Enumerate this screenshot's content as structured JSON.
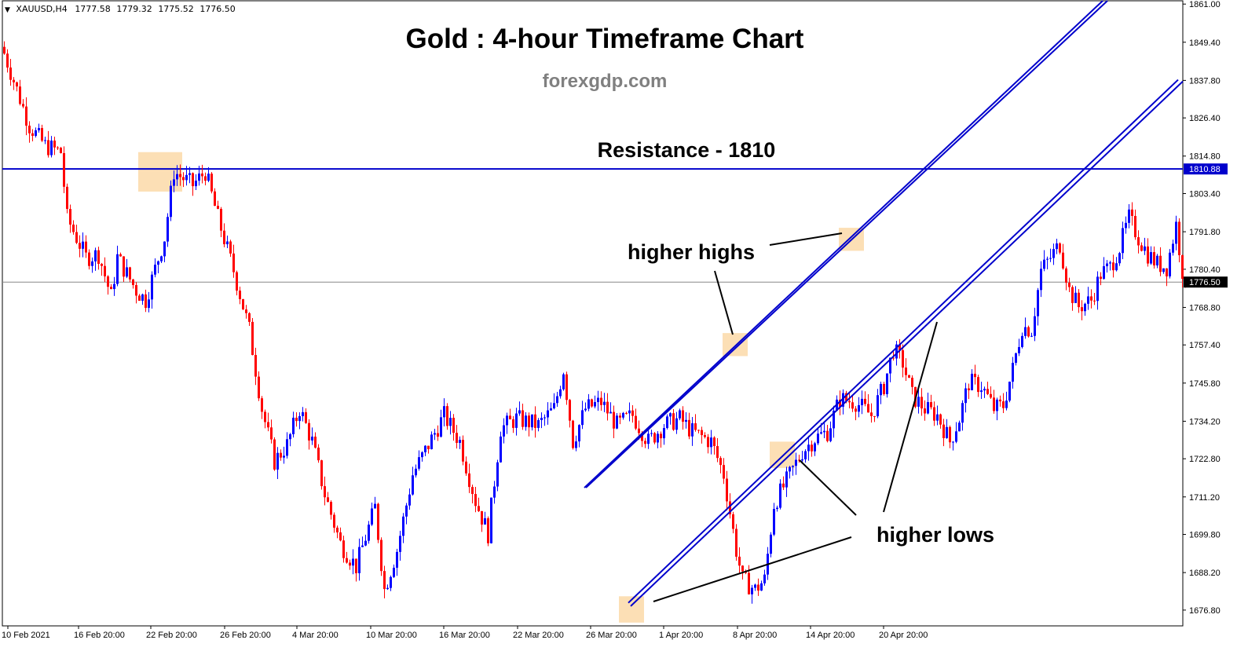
{
  "header": {
    "symbol": "XAUUSD,H4",
    "open": "1777.58",
    "high": "1779.32",
    "low": "1775.52",
    "close": "1776.50"
  },
  "chart_data": {
    "type": "candlestick",
    "title": "Gold : 4-hour Timeframe Chart",
    "subtitle": "forexgdp.com",
    "y_axis": {
      "range": [
        1672.0,
        1862.0
      ],
      "tick_labels": [
        "1861.00",
        "1849.40",
        "1837.80",
        "1826.40",
        "1814.80",
        "1803.40",
        "1791.80",
        "1780.40",
        "1768.80",
        "1757.40",
        "1745.80",
        "1734.20",
        "1722.80",
        "1711.20",
        "1699.80",
        "1688.20",
        "1676.80"
      ],
      "highlighted_labels": [
        {
          "label": "1810.88",
          "value": 1810.88,
          "color": "#0000cc"
        },
        {
          "label": "1776.50",
          "value": 1776.5,
          "color": "#ffffff"
        }
      ]
    },
    "x_axis": {
      "tick_labels": [
        "10 Feb 2021",
        "16 Feb 20:00",
        "22 Feb 20:00",
        "26 Feb 20:00",
        "4 Mar 20:00",
        "10 Mar 20:00",
        "16 Mar 20:00",
        "22 Mar 20:00",
        "26 Mar 20:00",
        "1 Apr 20:00",
        "8 Apr 20:00",
        "14 Apr 20:00",
        "20 Apr 20:00"
      ]
    },
    "candle_colors": {
      "up": "#0000ff",
      "down": "#ff0000"
    },
    "approximate_close_path": [
      {
        "bar": 0,
        "close": 1846
      },
      {
        "bar": 8,
        "close": 1824
      },
      {
        "bar": 13,
        "close": 1818
      },
      {
        "bar": 18,
        "close": 1816
      },
      {
        "bar": 20,
        "close": 1796
      },
      {
        "bar": 26,
        "close": 1784
      },
      {
        "bar": 30,
        "close": 1785
      },
      {
        "bar": 34,
        "close": 1772
      },
      {
        "bar": 36,
        "close": 1784
      },
      {
        "bar": 42,
        "close": 1774
      },
      {
        "bar": 45,
        "close": 1771
      },
      {
        "bar": 51,
        "close": 1790
      },
      {
        "bar": 54,
        "close": 1810
      },
      {
        "bar": 60,
        "close": 1806
      },
      {
        "bar": 64,
        "close": 1810
      },
      {
        "bar": 68,
        "close": 1796
      },
      {
        "bar": 73,
        "close": 1780
      },
      {
        "bar": 78,
        "close": 1762
      },
      {
        "bar": 82,
        "close": 1738
      },
      {
        "bar": 86,
        "close": 1722
      },
      {
        "bar": 90,
        "close": 1727
      },
      {
        "bar": 94,
        "close": 1738
      },
      {
        "bar": 98,
        "close": 1728
      },
      {
        "bar": 102,
        "close": 1712
      },
      {
        "bar": 107,
        "close": 1697
      },
      {
        "bar": 112,
        "close": 1690
      },
      {
        "bar": 118,
        "close": 1708
      },
      {
        "bar": 121,
        "close": 1683
      },
      {
        "bar": 125,
        "close": 1695
      },
      {
        "bar": 130,
        "close": 1718
      },
      {
        "bar": 135,
        "close": 1727
      },
      {
        "bar": 140,
        "close": 1736
      },
      {
        "bar": 145,
        "close": 1728
      },
      {
        "bar": 150,
        "close": 1710
      },
      {
        "bar": 154,
        "close": 1700
      },
      {
        "bar": 158,
        "close": 1732
      },
      {
        "bar": 163,
        "close": 1735
      },
      {
        "bar": 170,
        "close": 1733
      },
      {
        "bar": 175,
        "close": 1738
      },
      {
        "bar": 178,
        "close": 1750
      },
      {
        "bar": 181,
        "close": 1728
      },
      {
        "bar": 185,
        "close": 1738
      },
      {
        "bar": 190,
        "close": 1740
      },
      {
        "bar": 195,
        "close": 1733
      },
      {
        "bar": 200,
        "close": 1736
      },
      {
        "bar": 205,
        "close": 1728
      },
      {
        "bar": 210,
        "close": 1733
      },
      {
        "bar": 215,
        "close": 1735
      },
      {
        "bar": 219,
        "close": 1731
      },
      {
        "bar": 225,
        "close": 1728
      },
      {
        "bar": 229,
        "close": 1718
      },
      {
        "bar": 233,
        "close": 1695
      },
      {
        "bar": 235,
        "close": 1686
      },
      {
        "bar": 239,
        "close": 1683
      },
      {
        "bar": 242,
        "close": 1686
      },
      {
        "bar": 245,
        "close": 1709
      },
      {
        "bar": 249,
        "close": 1716
      },
      {
        "bar": 254,
        "close": 1725
      },
      {
        "bar": 258,
        "close": 1729
      },
      {
        "bar": 262,
        "close": 1731
      },
      {
        "bar": 266,
        "close": 1741
      },
      {
        "bar": 271,
        "close": 1740
      },
      {
        "bar": 276,
        "close": 1736
      },
      {
        "bar": 280,
        "close": 1745
      },
      {
        "bar": 283,
        "close": 1756
      },
      {
        "bar": 286,
        "close": 1752
      },
      {
        "bar": 289,
        "close": 1742
      },
      {
        "bar": 293,
        "close": 1738
      },
      {
        "bar": 297,
        "close": 1736
      },
      {
        "bar": 301,
        "close": 1728
      },
      {
        "bar": 304,
        "close": 1735
      },
      {
        "bar": 307,
        "close": 1746
      },
      {
        "bar": 311,
        "close": 1745
      },
      {
        "bar": 315,
        "close": 1738
      },
      {
        "bar": 318,
        "close": 1739
      },
      {
        "bar": 321,
        "close": 1750
      },
      {
        "bar": 324,
        "close": 1763
      },
      {
        "bar": 327,
        "close": 1762
      },
      {
        "bar": 330,
        "close": 1780
      },
      {
        "bar": 333,
        "close": 1784
      },
      {
        "bar": 336,
        "close": 1788
      },
      {
        "bar": 339,
        "close": 1774
      },
      {
        "bar": 342,
        "close": 1769
      },
      {
        "bar": 346,
        "close": 1771
      },
      {
        "bar": 349,
        "close": 1779
      },
      {
        "bar": 352,
        "close": 1781
      },
      {
        "bar": 355,
        "close": 1787
      },
      {
        "bar": 358,
        "close": 1796
      },
      {
        "bar": 361,
        "close": 1790
      },
      {
        "bar": 364,
        "close": 1785
      },
      {
        "bar": 367,
        "close": 1782
      },
      {
        "bar": 370,
        "close": 1781
      },
      {
        "bar": 373,
        "close": 1794
      },
      {
        "bar": 375,
        "close": 1780
      },
      {
        "bar": 376,
        "close": 1776.5
      }
    ],
    "horizontal_lines": [
      {
        "value": 1810.88,
        "color": "#0000cc",
        "style": "solid"
      },
      {
        "value": 1776.5,
        "color": "#888888",
        "style": "solid"
      }
    ],
    "trend_lines": [
      {
        "role": "upper-channel",
        "from": {
          "bar": 185,
          "value": 1714
        },
        "to": {
          "bar": 350,
          "value": 1862
        }
      },
      {
        "role": "lower-channel",
        "from": {
          "bar": 199,
          "value": 1679
        },
        "to": {
          "bar": 374,
          "value": 1838
        }
      },
      {
        "role": "lower-channel-extended",
        "from": {
          "bar": 199,
          "value": 1679
        },
        "to": {
          "bar": 374,
          "value": 1838
        }
      }
    ],
    "highlight_zones": [
      {
        "bar_from": 43,
        "bar_to": 57,
        "low": 1804,
        "high": 1816
      },
      {
        "bar_from": 229,
        "bar_to": 237,
        "low": 1754,
        "high": 1761
      },
      {
        "bar_from": 266,
        "bar_to": 274,
        "low": 1786,
        "high": 1793
      },
      {
        "bar_from": 196,
        "bar_to": 204,
        "low": 1673,
        "high": 1681
      },
      {
        "bar_from": 244,
        "bar_to": 252,
        "low": 1720,
        "high": 1728
      }
    ],
    "annotations": [
      {
        "text": "Resistance - 1810"
      },
      {
        "text": "higher highs"
      },
      {
        "text": "higher lows"
      }
    ]
  }
}
